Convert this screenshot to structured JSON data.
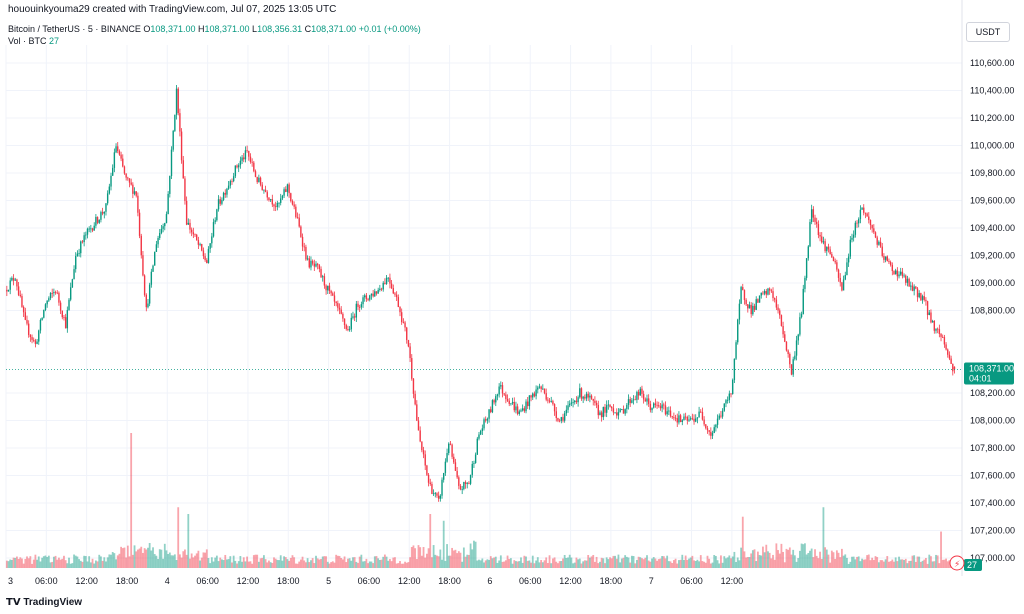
{
  "header": {
    "credit": "hououinkyouma29 created with TradingView.com, Jul 07, 2025 13:05 UTC",
    "symbol": "Bitcoin / TetherUS · 5 · BINANCE",
    "o_label": "O",
    "o_value": "108,371.00",
    "h_label": "H",
    "h_value": "108,371.00",
    "l_label": "L",
    "l_value": "108,356.31",
    "c_label": "C",
    "c_value": "108,371.00",
    "change": "+0.01 (+0.00%)",
    "vol_label": "Vol · BTC",
    "vol_value": "27",
    "currency": "USDT"
  },
  "footer": {
    "logo_text": "TradingView",
    "logo_icon": "tradingview-logo-icon"
  },
  "colors": {
    "up": "#089981",
    "down": "#f23645",
    "grid": "#f0f3fa",
    "axis_text": "#131722",
    "price_tag": "#089981"
  },
  "chart_data": {
    "type": "candlestick",
    "y_axis": {
      "ticks": [
        110600,
        110400,
        110200,
        110000,
        109800,
        109600,
        109400,
        109200,
        109000,
        108800,
        108200,
        108000,
        107800,
        107600,
        107400,
        107200,
        107000
      ],
      "tick_labels": [
        "110,600.00",
        "110,400.00",
        "110,200.00",
        "110,000.00",
        "109,800.00",
        "109,600.00",
        "109,400.00",
        "109,200.00",
        "109,000.00",
        "108,800.00",
        "108,200.00",
        "108,000.00",
        "107,800.00",
        "107,600.00",
        "107,400.00",
        "107,200.00",
        "107,000.00"
      ],
      "range": [
        107000,
        110650
      ]
    },
    "x_axis": {
      "ticks": [
        "3",
        "06:00",
        "12:00",
        "18:00",
        "4",
        "06:00",
        "12:00",
        "18:00",
        "5",
        "06:00",
        "12:00",
        "18:00",
        "6",
        "06:00",
        "12:00",
        "18:00",
        "7",
        "06:00",
        "12:00"
      ]
    },
    "last_price": 108371,
    "last_price_label": "108,371.00",
    "countdown": "04:01",
    "last_volume": "27",
    "price_path": [
      [
        0,
        108950
      ],
      [
        1.5,
        109050
      ],
      [
        3,
        108700
      ],
      [
        4.5,
        108550
      ],
      [
        6,
        108850
      ],
      [
        7.5,
        108950
      ],
      [
        9,
        108700
      ],
      [
        10.5,
        109200
      ],
      [
        12,
        109350
      ],
      [
        13.5,
        109450
      ],
      [
        15,
        109550
      ],
      [
        16.5,
        110000
      ],
      [
        18,
        109750
      ],
      [
        19.5,
        109650
      ],
      [
        21,
        108800
      ],
      [
        22.5,
        109300
      ],
      [
        24,
        109500
      ],
      [
        25.5,
        110400
      ],
      [
        27,
        109450
      ],
      [
        28.5,
        109300
      ],
      [
        30,
        109150
      ],
      [
        31.5,
        109550
      ],
      [
        33,
        109700
      ],
      [
        34.5,
        109850
      ],
      [
        36,
        109950
      ],
      [
        37.5,
        109750
      ],
      [
        39,
        109650
      ],
      [
        40.5,
        109550
      ],
      [
        42,
        109700
      ],
      [
        43.5,
        109450
      ],
      [
        45,
        109150
      ],
      [
        46.5,
        109100
      ],
      [
        48,
        108950
      ],
      [
        49.5,
        108800
      ],
      [
        51,
        108650
      ],
      [
        52.5,
        108850
      ],
      [
        54,
        108900
      ],
      [
        55.5,
        108950
      ],
      [
        57,
        109050
      ],
      [
        58.5,
        108850
      ],
      [
        60,
        108550
      ],
      [
        61.5,
        107900
      ],
      [
        63,
        107550
      ],
      [
        64.5,
        107400
      ],
      [
        66,
        107850
      ],
      [
        67.5,
        107500
      ],
      [
        69,
        107550
      ],
      [
        70.5,
        107900
      ],
      [
        72,
        108050
      ],
      [
        73.5,
        108250
      ],
      [
        75,
        108150
      ],
      [
        76.5,
        108050
      ],
      [
        78,
        108150
      ],
      [
        79.5,
        108250
      ],
      [
        81,
        108150
      ],
      [
        82.5,
        108000
      ],
      [
        84,
        108100
      ],
      [
        85.5,
        108200
      ],
      [
        87,
        108150
      ],
      [
        88.5,
        108050
      ],
      [
        90,
        108100
      ],
      [
        91.5,
        108050
      ],
      [
        93,
        108150
      ],
      [
        94.5,
        108200
      ],
      [
        96,
        108100
      ],
      [
        97.5,
        108100
      ],
      [
        99,
        108050
      ],
      [
        100.5,
        108000
      ],
      [
        102,
        108000
      ],
      [
        103.5,
        108050
      ],
      [
        105,
        107900
      ],
      [
        106.5,
        108050
      ],
      [
        108,
        108200
      ],
      [
        109.5,
        108950
      ],
      [
        111,
        108800
      ],
      [
        112.5,
        108900
      ],
      [
        114,
        108950
      ],
      [
        115.5,
        108700
      ],
      [
        117,
        108350
      ],
      [
        118.5,
        108800
      ],
      [
        120,
        109550
      ],
      [
        121.5,
        109300
      ],
      [
        123,
        109200
      ],
      [
        124.5,
        108950
      ],
      [
        126,
        109350
      ],
      [
        127.5,
        109550
      ],
      [
        129,
        109400
      ],
      [
        130.5,
        109200
      ],
      [
        132,
        109100
      ],
      [
        133.5,
        109050
      ],
      [
        135,
        108950
      ],
      [
        136.5,
        108900
      ],
      [
        138,
        108700
      ],
      [
        139.5,
        108600
      ],
      [
        141,
        108371
      ]
    ],
    "x_range_hours": [
      0,
      141.5
    ],
    "volume": {
      "seed": 7,
      "spikes": [
        {
          "h": 18.5,
          "v": 100
        },
        {
          "h": 25.5,
          "v": 45
        },
        {
          "h": 27,
          "v": 40
        },
        {
          "h": 63,
          "v": 40
        },
        {
          "h": 65,
          "v": 35
        },
        {
          "h": 109.5,
          "v": 38
        },
        {
          "h": 121.5,
          "v": 45
        },
        {
          "h": 139,
          "v": 27
        }
      ],
      "max": 100
    }
  }
}
